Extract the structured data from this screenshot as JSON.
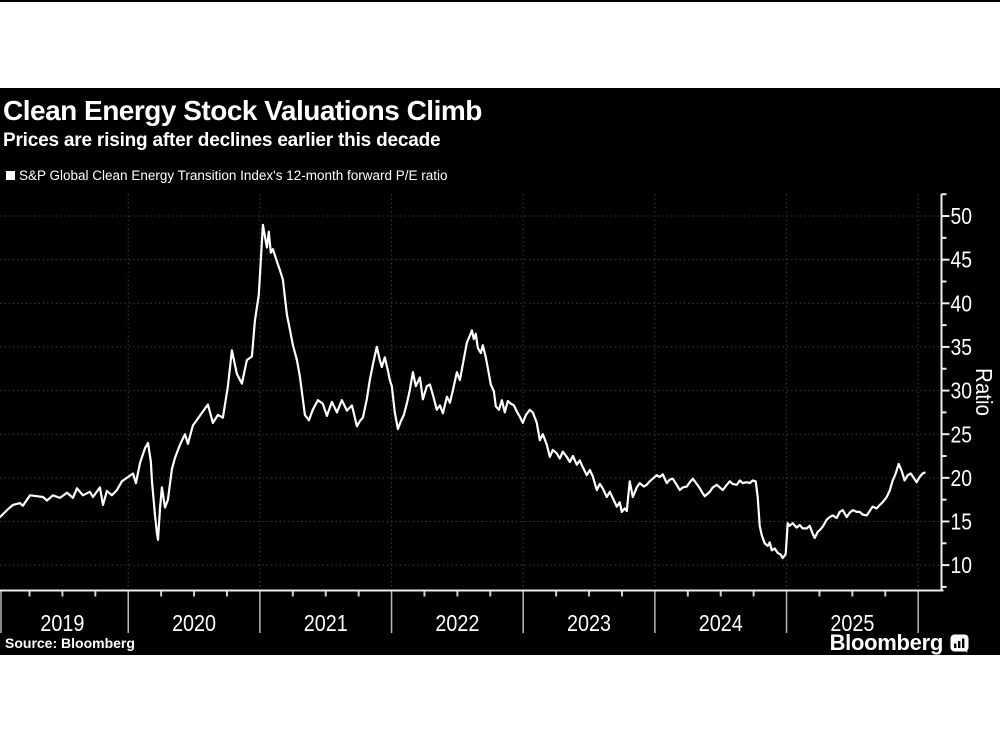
{
  "header": {
    "title": "Clean Energy Stock Valuations Climb",
    "subtitle": "Prices are rising after declines earlier this decade"
  },
  "legend": {
    "marker_icon": "white-square-swatch",
    "label": "S&P Global Clean Energy Transition Index's 12-month forward P/E ratio"
  },
  "source_line": "Source: Bloomberg",
  "branding": {
    "wordmark": "Bloomberg",
    "icon": "bloomberg-chart-bubble-icon"
  },
  "colors": {
    "page_background": "#ffffff",
    "panel_background": "#000000",
    "line": "#ffffff",
    "grid": "#424242",
    "axis": "#ededed",
    "tick_label": "#ffffff",
    "year_divider": "#b8b8b8",
    "quarter_tick": "#d0d0d0",
    "text": "#ffffff"
  },
  "chart_data": {
    "type": "line",
    "title": "Clean Energy Stock Valuations Climb",
    "subtitle": "Prices are rising after declines earlier this decade",
    "xlabel": "",
    "ylabel": "Ratio",
    "grid": true,
    "legend_position": "top-left-above-plot",
    "y_ticks": [
      10,
      15,
      20,
      25,
      30,
      35,
      40,
      45,
      50
    ],
    "y_minor_interval": 2.5,
    "x_minor_interval": 0.25,
    "x_year_gridlines": [
      2020,
      2021,
      2022,
      2023,
      2024,
      2025,
      2026
    ],
    "x_tick_year_labels": [
      "2019",
      "2020",
      "2021",
      "2022",
      "2023",
      "2024",
      "2025"
    ],
    "xlim": [
      2019.026,
      2026.163
    ],
    "ylim": [
      7.1,
      52.4
    ],
    "series": [
      {
        "name": "S&P Global Clean Energy Transition Index's 12-month forward P/E ratio",
        "color": "#ffffff",
        "points": [
          [
            2019.026,
            15.5
          ],
          [
            2019.079,
            16.3
          ],
          [
            2019.124,
            16.9
          ],
          [
            2019.178,
            17.1
          ],
          [
            2019.2,
            16.8
          ],
          [
            2019.254,
            18.0
          ],
          [
            2019.307,
            17.9
          ],
          [
            2019.352,
            17.8
          ],
          [
            2019.383,
            17.4
          ],
          [
            2019.428,
            18.0
          ],
          [
            2019.481,
            17.7
          ],
          [
            2019.535,
            18.3
          ],
          [
            2019.58,
            17.7
          ],
          [
            2019.611,
            18.8
          ],
          [
            2019.656,
            18.0
          ],
          [
            2019.709,
            18.4
          ],
          [
            2019.732,
            17.8
          ],
          [
            2019.785,
            18.9
          ],
          [
            2019.808,
            16.9
          ],
          [
            2019.838,
            18.5
          ],
          [
            2019.876,
            18.0
          ],
          [
            2019.914,
            18.6
          ],
          [
            2019.952,
            19.6
          ],
          [
            2019.998,
            20.1
          ],
          [
            2020.036,
            20.5
          ],
          [
            2020.058,
            19.4
          ],
          [
            2020.089,
            21.7
          ],
          [
            2020.127,
            23.4
          ],
          [
            2020.15,
            24.0
          ],
          [
            2020.172,
            21.8
          ],
          [
            2020.18,
            19.7
          ],
          [
            2020.203,
            15.7
          ],
          [
            2020.218,
            13.7
          ],
          [
            2020.226,
            12.9
          ],
          [
            2020.241,
            16.5
          ],
          [
            2020.256,
            18.9
          ],
          [
            2020.279,
            16.6
          ],
          [
            2020.301,
            17.5
          ],
          [
            2020.332,
            21.0
          ],
          [
            2020.355,
            22.3
          ],
          [
            2020.393,
            23.8
          ],
          [
            2020.431,
            25.0
          ],
          [
            2020.453,
            23.9
          ],
          [
            2020.491,
            26.0
          ],
          [
            2020.529,
            26.8
          ],
          [
            2020.567,
            27.6
          ],
          [
            2020.605,
            28.4
          ],
          [
            2020.643,
            26.3
          ],
          [
            2020.681,
            27.2
          ],
          [
            2020.719,
            26.9
          ],
          [
            2020.757,
            30.5
          ],
          [
            2020.787,
            34.6
          ],
          [
            2020.825,
            31.9
          ],
          [
            2020.863,
            30.8
          ],
          [
            2020.901,
            33.5
          ],
          [
            2020.939,
            33.9
          ],
          [
            2020.962,
            38.0
          ],
          [
            2020.992,
            41.0
          ],
          [
            2021.023,
            49.0
          ],
          [
            2021.053,
            46.4
          ],
          [
            2021.068,
            48.2
          ],
          [
            2021.083,
            45.8
          ],
          [
            2021.099,
            46.2
          ],
          [
            2021.129,
            44.8
          ],
          [
            2021.152,
            43.8
          ],
          [
            2021.175,
            42.7
          ],
          [
            2021.205,
            38.7
          ],
          [
            2021.228,
            37.0
          ],
          [
            2021.251,
            35.2
          ],
          [
            2021.281,
            33.5
          ],
          [
            2021.304,
            31.6
          ],
          [
            2021.342,
            27.2
          ],
          [
            2021.372,
            26.6
          ],
          [
            2021.402,
            27.8
          ],
          [
            2021.44,
            28.9
          ],
          [
            2021.478,
            28.5
          ],
          [
            2021.509,
            27.1
          ],
          [
            2021.547,
            28.7
          ],
          [
            2021.585,
            27.5
          ],
          [
            2021.623,
            28.9
          ],
          [
            2021.661,
            27.7
          ],
          [
            2021.699,
            28.3
          ],
          [
            2021.737,
            25.9
          ],
          [
            2021.759,
            26.5
          ],
          [
            2021.782,
            26.9
          ],
          [
            2021.812,
            29.0
          ],
          [
            2021.835,
            31.2
          ],
          [
            2021.858,
            33.0
          ],
          [
            2021.888,
            35.0
          ],
          [
            2021.911,
            33.5
          ],
          [
            2021.926,
            32.7
          ],
          [
            2021.949,
            33.8
          ],
          [
            2021.972,
            32.3
          ],
          [
            2021.987,
            31.2
          ],
          [
            2022.002,
            30.5
          ],
          [
            2022.025,
            27.5
          ],
          [
            2022.048,
            25.6
          ],
          [
            2022.071,
            26.5
          ],
          [
            2022.093,
            27.2
          ],
          [
            2022.116,
            28.5
          ],
          [
            2022.139,
            30.1
          ],
          [
            2022.162,
            32.1
          ],
          [
            2022.184,
            30.5
          ],
          [
            2022.215,
            31.5
          ],
          [
            2022.238,
            29.0
          ],
          [
            2022.268,
            30.5
          ],
          [
            2022.291,
            30.7
          ],
          [
            2022.314,
            29.5
          ],
          [
            2022.344,
            27.8
          ],
          [
            2022.367,
            28.3
          ],
          [
            2022.39,
            27.4
          ],
          [
            2022.42,
            29.3
          ],
          [
            2022.443,
            28.6
          ],
          [
            2022.465,
            30.0
          ],
          [
            2022.496,
            32.1
          ],
          [
            2022.519,
            31.2
          ],
          [
            2022.541,
            33.0
          ],
          [
            2022.572,
            35.5
          ],
          [
            2022.595,
            36.3
          ],
          [
            2022.61,
            36.9
          ],
          [
            2022.625,
            35.9
          ],
          [
            2022.64,
            36.5
          ],
          [
            2022.655,
            34.9
          ],
          [
            2022.678,
            34.3
          ],
          [
            2022.693,
            35.2
          ],
          [
            2022.716,
            33.8
          ],
          [
            2022.731,
            32.6
          ],
          [
            2022.754,
            30.7
          ],
          [
            2022.777,
            29.9
          ],
          [
            2022.792,
            28.2
          ],
          [
            2022.815,
            27.8
          ],
          [
            2022.838,
            28.9
          ],
          [
            2022.86,
            27.5
          ],
          [
            2022.883,
            28.8
          ],
          [
            2022.906,
            28.5
          ],
          [
            2022.929,
            28.3
          ],
          [
            2022.951,
            27.6
          ],
          [
            2022.974,
            27.0
          ],
          [
            2022.997,
            26.3
          ],
          [
            2023.02,
            27.2
          ],
          [
            2023.05,
            27.8
          ],
          [
            2023.073,
            27.5
          ],
          [
            2023.103,
            26.3
          ],
          [
            2023.126,
            24.3
          ],
          [
            2023.149,
            25.0
          ],
          [
            2023.179,
            23.8
          ],
          [
            2023.202,
            22.4
          ],
          [
            2023.225,
            23.2
          ],
          [
            2023.255,
            22.8
          ],
          [
            2023.278,
            22.2
          ],
          [
            2023.301,
            23.0
          ],
          [
            2023.331,
            22.4
          ],
          [
            2023.354,
            21.8
          ],
          [
            2023.377,
            22.5
          ],
          [
            2023.407,
            21.5
          ],
          [
            2023.43,
            22.0
          ],
          [
            2023.453,
            21.2
          ],
          [
            2023.483,
            20.3
          ],
          [
            2023.506,
            20.9
          ],
          [
            2023.528,
            20.2
          ],
          [
            2023.559,
            18.6
          ],
          [
            2023.582,
            19.3
          ],
          [
            2023.604,
            18.8
          ],
          [
            2023.635,
            17.8
          ],
          [
            2023.658,
            18.4
          ],
          [
            2023.68,
            17.7
          ],
          [
            2023.711,
            16.7
          ],
          [
            2023.733,
            17.2
          ],
          [
            2023.749,
            16.1
          ],
          [
            2023.771,
            16.5
          ],
          [
            2023.787,
            16.2
          ],
          [
            2023.809,
            19.6
          ],
          [
            2023.832,
            17.8
          ],
          [
            2023.863,
            18.9
          ],
          [
            2023.885,
            19.4
          ],
          [
            2023.916,
            19.0
          ],
          [
            2023.938,
            19.2
          ],
          [
            2023.961,
            19.6
          ],
          [
            2023.984,
            19.9
          ],
          [
            2024.014,
            20.3
          ],
          [
            2024.037,
            20.1
          ],
          [
            2024.06,
            20.4
          ],
          [
            2024.09,
            19.4
          ],
          [
            2024.113,
            19.8
          ],
          [
            2024.136,
            19.9
          ],
          [
            2024.166,
            19.2
          ],
          [
            2024.189,
            18.6
          ],
          [
            2024.212,
            18.9
          ],
          [
            2024.242,
            19.0
          ],
          [
            2024.265,
            19.5
          ],
          [
            2024.288,
            19.9
          ],
          [
            2024.318,
            19.3
          ],
          [
            2024.341,
            18.8
          ],
          [
            2024.364,
            18.2
          ],
          [
            2024.379,
            17.9
          ],
          [
            2024.402,
            18.2
          ],
          [
            2024.417,
            18.4
          ],
          [
            2024.44,
            18.9
          ],
          [
            2024.47,
            19.2
          ],
          [
            2024.493,
            18.9
          ],
          [
            2024.515,
            18.6
          ],
          [
            2024.546,
            19.2
          ],
          [
            2024.569,
            19.6
          ],
          [
            2024.591,
            19.3
          ],
          [
            2024.622,
            19.2
          ],
          [
            2024.645,
            19.7
          ],
          [
            2024.667,
            19.4
          ],
          [
            2024.698,
            19.5
          ],
          [
            2024.721,
            19.4
          ],
          [
            2024.743,
            19.7
          ],
          [
            2024.766,
            19.6
          ],
          [
            2024.781,
            17.8
          ],
          [
            2024.796,
            14.5
          ],
          [
            2024.812,
            13.4
          ],
          [
            2024.834,
            12.5
          ],
          [
            2024.857,
            12.2
          ],
          [
            2024.872,
            12.6
          ],
          [
            2024.888,
            11.7
          ],
          [
            2024.91,
            11.9
          ],
          [
            2024.933,
            11.4
          ],
          [
            2024.956,
            11.2
          ],
          [
            2024.971,
            10.8
          ],
          [
            2024.986,
            11.1
          ],
          [
            2024.994,
            11.3
          ],
          [
            2025.009,
            14.8
          ],
          [
            2025.024,
            14.5
          ],
          [
            2025.047,
            14.8
          ],
          [
            2025.077,
            14.3
          ],
          [
            2025.1,
            14.6
          ],
          [
            2025.123,
            14.2
          ],
          [
            2025.153,
            14.2
          ],
          [
            2025.176,
            14.5
          ],
          [
            2025.199,
            13.6
          ],
          [
            2025.214,
            13.1
          ],
          [
            2025.237,
            13.8
          ],
          [
            2025.252,
            14.0
          ],
          [
            2025.275,
            14.4
          ],
          [
            2025.305,
            15.2
          ],
          [
            2025.328,
            15.5
          ],
          [
            2025.351,
            15.7
          ],
          [
            2025.381,
            15.4
          ],
          [
            2025.404,
            16.1
          ],
          [
            2025.427,
            16.3
          ],
          [
            2025.457,
            15.5
          ],
          [
            2025.48,
            16.0
          ],
          [
            2025.503,
            16.3
          ],
          [
            2025.533,
            16.1
          ],
          [
            2025.556,
            16.1
          ],
          [
            2025.578,
            15.8
          ],
          [
            2025.609,
            15.7
          ],
          [
            2025.632,
            16.2
          ],
          [
            2025.654,
            16.7
          ],
          [
            2025.685,
            16.5
          ],
          [
            2025.708,
            16.9
          ],
          [
            2025.73,
            17.2
          ],
          [
            2025.761,
            17.8
          ],
          [
            2025.783,
            18.5
          ],
          [
            2025.806,
            19.7
          ],
          [
            2025.829,
            20.5
          ],
          [
            2025.852,
            21.6
          ],
          [
            2025.875,
            20.8
          ],
          [
            2025.897,
            19.7
          ],
          [
            2025.92,
            20.3
          ],
          [
            2025.943,
            20.5
          ],
          [
            2025.966,
            20.0
          ],
          [
            2025.988,
            19.5
          ],
          [
            2026.011,
            20.1
          ],
          [
            2026.034,
            20.5
          ],
          [
            2026.049,
            20.6
          ]
        ]
      }
    ]
  }
}
